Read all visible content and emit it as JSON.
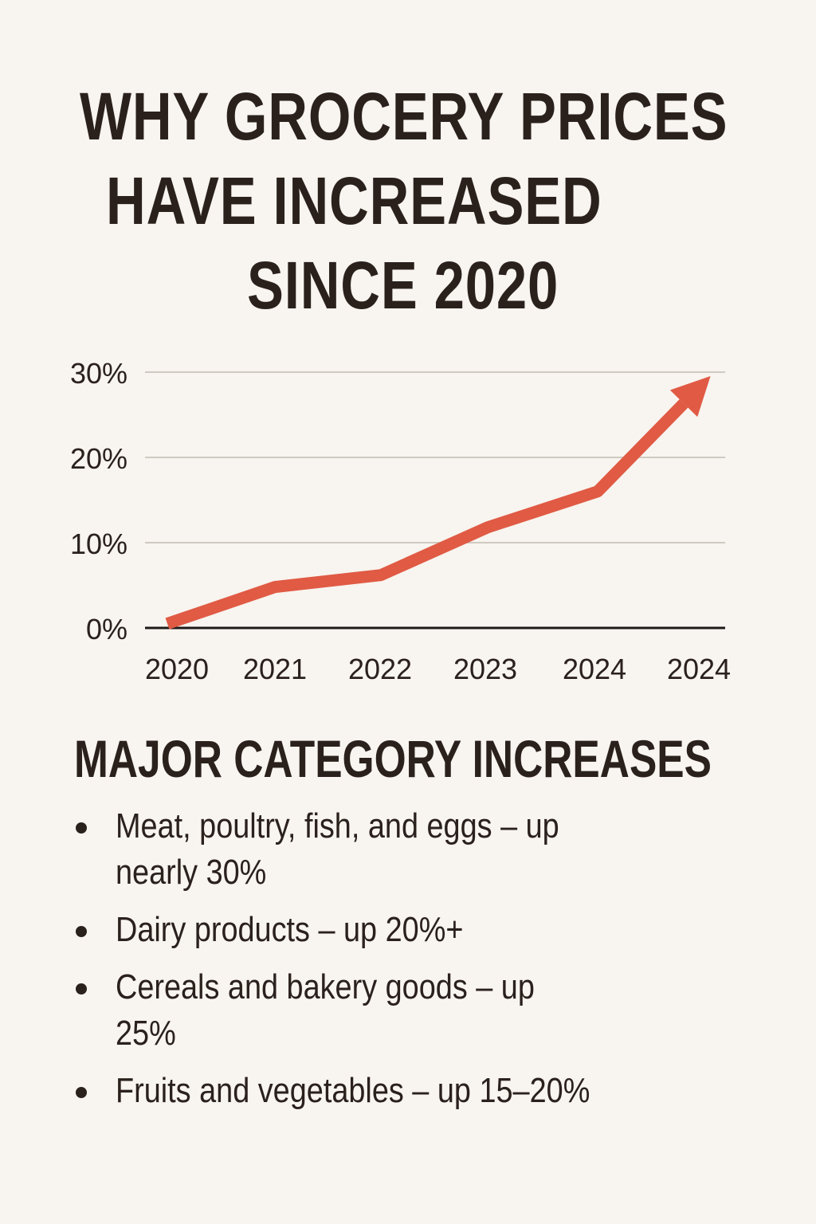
{
  "title": {
    "line1": "WHY GROCERY PRICES",
    "line2": "HAVE INCREASED",
    "line3": "SINCE 2020"
  },
  "chart_data": {
    "type": "line",
    "title": "",
    "xlabel": "",
    "ylabel": "",
    "categories": [
      "2020",
      "2021",
      "2022",
      "2023",
      "2024",
      "2024"
    ],
    "values": [
      0.5,
      4.8,
      6.2,
      11.8,
      16,
      29
    ],
    "y_ticks": [
      "0%",
      "10%",
      "20%",
      "30%"
    ],
    "ylim": [
      0,
      30
    ],
    "grid": true,
    "line_color": "#e05a44",
    "end_marker": "arrow"
  },
  "section": {
    "heading": "MAJOR CATEGORY INCREASES",
    "items": [
      "Meat, poultry, fish, and eggs – up nearly 30%",
      "Dairy products – up 20%+",
      "Cereals and bakery goods – up 25%",
      "Fruits and vegetables – up 15–20%"
    ]
  }
}
